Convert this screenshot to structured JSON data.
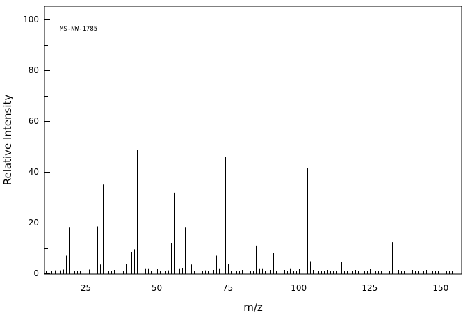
{
  "chart_data": {
    "type": "bar",
    "xlabel": "m/z",
    "ylabel": "Relative Intensity",
    "annotation": "MS-NW-1785",
    "xlim": [
      10,
      157
    ],
    "ylim": [
      0,
      105
    ],
    "x_ticks": [
      25,
      50,
      75,
      100,
      125,
      150
    ],
    "y_ticks": [
      0,
      20,
      40,
      60,
      80,
      100
    ],
    "grid": false,
    "peaks": {
      "x": [
        14,
        15,
        16,
        17,
        18,
        19,
        26,
        27,
        28,
        29,
        30,
        31,
        32,
        38,
        39,
        40,
        41,
        42,
        43,
        44,
        45,
        46,
        47,
        53,
        54,
        55,
        56,
        57,
        58,
        59,
        60,
        61,
        62,
        66,
        67,
        68,
        69,
        71,
        72,
        73,
        74,
        75,
        85,
        86,
        87,
        89,
        91,
        97,
        101,
        103,
        104,
        115,
        116,
        133,
        134,
        146
      ],
      "y": [
        1.2,
        16,
        1.2,
        1.5,
        7,
        18,
        1.5,
        11,
        14,
        18.5,
        3.5,
        35,
        2,
        1,
        3.8,
        1.2,
        8.5,
        9.5,
        48.5,
        32,
        32,
        2,
        2,
        1,
        1.2,
        11.8,
        31.8,
        25.5,
        2,
        2.2,
        18,
        83.5,
        3.5,
        1,
        1.2,
        1,
        4.8,
        7,
        2,
        100,
        46,
        3.8,
        11,
        2,
        2,
        1.5,
        8,
        2,
        1.5,
        41.5,
        4.8,
        4.5,
        1,
        12.3,
        1,
        1
      ]
    }
  }
}
